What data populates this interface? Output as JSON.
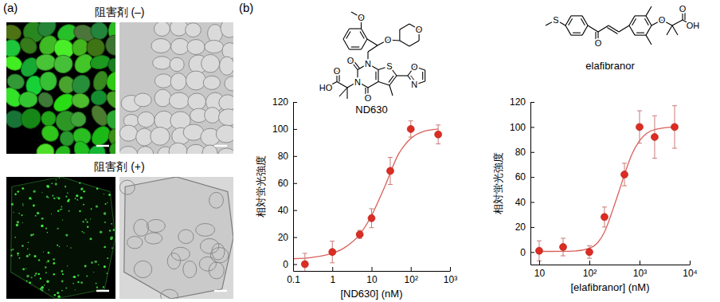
{
  "figure": {
    "panel_labels": [
      "(a)",
      "(b)"
    ],
    "conditions": [
      "阻害剤 (–)",
      "阻害剤 (+)"
    ],
    "structures": [
      [
        "N",
        "N",
        "O",
        "O",
        "HO",
        "O",
        "S",
        "O",
        "N",
        "O",
        "O",
        "O"
      ],
      [
        "S",
        "O",
        "O",
        "O",
        "OH"
      ]
    ]
  },
  "chart_data": [
    {
      "type": "scatter",
      "title": "ND630",
      "x_label": "[ND630] (nM)",
      "y_label": "相対蛍光強度",
      "log": "x",
      "grid": false,
      "xlim": [
        0.1,
        1000
      ],
      "xticks": [
        0.1,
        1,
        10,
        {
          "value": 100,
          "label": "10²"
        },
        {
          "value": 1000,
          "label": "10³"
        }
      ],
      "ylim": [
        -5,
        120
      ],
      "yticks": [
        0,
        20,
        40,
        60,
        80,
        100,
        120
      ],
      "series": [
        {
          "type": "scatter",
          "marker": "circle",
          "color": "#dd2c22",
          "x": [
            0.2,
            1,
            5,
            10,
            30,
            100,
            500
          ],
          "values": [
            0,
            9,
            22,
            34,
            69,
            100,
            96
          ],
          "errors": [
            8,
            8,
            3,
            7,
            10,
            6,
            7
          ]
        },
        {
          "type": "line",
          "line_style": "solid",
          "color": "#d9605a",
          "x": [
            0.1,
            0.3,
            1,
            2,
            5,
            10,
            20,
            50,
            100,
            200,
            500
          ],
          "values": [
            4,
            5,
            8,
            12,
            22,
            36,
            55,
            82,
            93,
            98,
            100
          ]
        }
      ]
    },
    {
      "type": "scatter",
      "title": "elafibranor",
      "x_label": "[elafibranor] (nM)",
      "y_label": "相対蛍光強度",
      "log": "x",
      "grid": false,
      "xlim": [
        6.7,
        10000
      ],
      "xticks": [
        10,
        {
          "value": 100,
          "label": "10²"
        },
        {
          "value": 1000,
          "label": "10³"
        },
        {
          "value": 10000,
          "label": "10⁴"
        }
      ],
      "ylim": [
        -10,
        120
      ],
      "yticks": [
        0,
        20,
        40,
        60,
        80,
        100,
        120
      ],
      "series": [
        {
          "type": "scatter",
          "marker": "circle",
          "color": "#dd2c22",
          "x": [
            10,
            30,
            100,
            200,
            500,
            1000,
            2000,
            5000
          ],
          "values": [
            1,
            4,
            0,
            28,
            62,
            100,
            92,
            100
          ],
          "errors": [
            8,
            7,
            5,
            8,
            9,
            13,
            17,
            17
          ]
        },
        {
          "type": "line",
          "line_style": "solid",
          "color": "#d9605a",
          "x": [
            10,
            50,
            100,
            150,
            200,
            300,
            400,
            500,
            700,
            1000,
            2000,
            5000
          ],
          "values": [
            0.5,
            0.8,
            3,
            8,
            16,
            35,
            50,
            62,
            78,
            89,
            98,
            100
          ]
        }
      ]
    }
  ]
}
